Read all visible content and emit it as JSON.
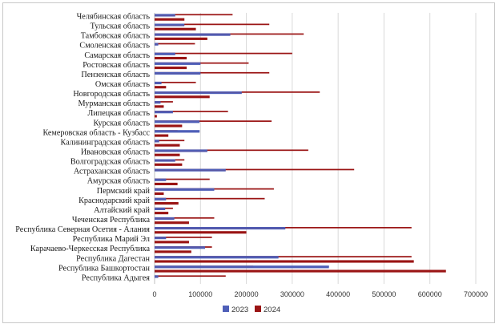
{
  "chart_data": {
    "type": "bar",
    "orientation": "horizontal",
    "categories": [
      "Челябинская область",
      "Тульская область",
      "Тамбовская область",
      "Смоленская область",
      "Самарская область",
      "Ростовская область",
      "Пензенская область",
      "Омская область",
      "Новгородская область",
      "Мурманская область",
      "Липецкая область",
      "Курская область",
      "Кемеровская область - Кузбасс",
      "Калининградская область",
      "Ивановская область",
      "Волгоградская область",
      "Астраханская область",
      "Амурская область",
      "Пермский край",
      "Краснодарский край",
      "Алтайский край",
      "Чеченская Республика",
      "Республика Северная Осетия - Алания",
      "Республика Марий Эл",
      "Карачаево-Черкесская Республика",
      "Республика Дагестан",
      "Республика Башкортостан",
      "Республика Адыгея"
    ],
    "series": [
      {
        "name": "2023",
        "color": "#4f5fb8",
        "values": [
          45000,
          65000,
          165000,
          8000,
          45000,
          100000,
          100000,
          15000,
          190000,
          13000,
          40000,
          98000,
          98000,
          10000,
          115000,
          45000,
          155000,
          25000,
          130000,
          25000,
          23000,
          43000,
          285000,
          25000,
          110000,
          270000,
          380000,
          8000
        ]
      },
      {
        "name": "2024",
        "color": "#9a1414",
        "values": [
          170000,
          250000,
          325000,
          88000,
          300000,
          205000,
          250000,
          90000,
          360000,
          40000,
          160000,
          255000,
          50000,
          65000,
          335000,
          65000,
          435000,
          120000,
          260000,
          240000,
          40000,
          130000,
          560000,
          125000,
          125000,
          560000,
          215000,
          155000
        ]
      }
    ],
    "second_bars_2024": [
      65000,
      90000,
      115000,
      0,
      70000,
      70000,
      0,
      25000,
      120000,
      20000,
      5000,
      60000,
      30000,
      55000,
      55000,
      60000,
      0,
      50000,
      20000,
      52000,
      30000,
      75000,
      200000,
      75000,
      80000,
      565000,
      635000,
      0
    ],
    "xlim": [
      0,
      700000
    ],
    "xticks": [
      0,
      100000,
      200000,
      300000,
      400000,
      500000,
      600000,
      700000
    ],
    "xtick_labels": [
      "0",
      "100000",
      "200000",
      "300000",
      "400000",
      "500000",
      "600000",
      "700000"
    ],
    "grid": true,
    "legend_position": "bottom"
  }
}
